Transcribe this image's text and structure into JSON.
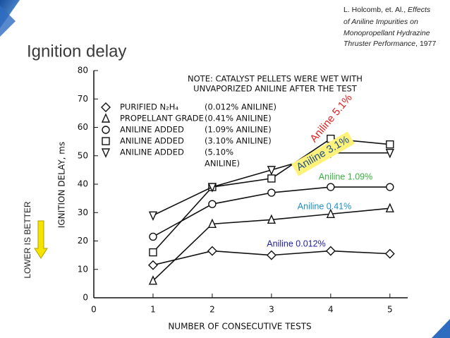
{
  "slide": {
    "title": "Ignition delay",
    "side_label": "LOWER IS BETTER",
    "citation": [
      [
        "L. Holcomb, et. Al., ",
        "Effects"
      ],
      [
        "of Aniline Impurities on"
      ],
      [
        "Monopropellant Hydrazine"
      ],
      [
        "Thruster Performance",
        ", 1977"
      ]
    ]
  },
  "chart_data": {
    "type": "line",
    "note": [
      "NOTE: CATALYST PELLETS WERE WET WITH",
      "UNVAPORIZED ANILINE AFTER THE TEST"
    ],
    "x_label": "NUMBER OF CONSECUTIVE TESTS",
    "y_label": "IGNITION DELAY, ms",
    "x": [
      1,
      2,
      3,
      4,
      5
    ],
    "series": [
      {
        "name": "PURIFIED N₂H₄",
        "note": [
          "(0.012% ANILINE)"
        ],
        "marker": "diamond",
        "color": "#111111",
        "values": [
          11.5,
          16.5,
          15,
          16.5,
          15.5
        ]
      },
      {
        "name": "PROPELLANT GRADE",
        "note": [
          "(0.41% ANILINE)"
        ],
        "marker": "triangle-up",
        "color": "#111111",
        "values": [
          6,
          26,
          27.5,
          29.5,
          31.5
        ]
      },
      {
        "name": "ANILINE ADDED",
        "note": [
          "(1.09% ANILINE)"
        ],
        "marker": "circle",
        "color": "#111111",
        "values": [
          21.5,
          33,
          37,
          39,
          39
        ]
      },
      {
        "name": "ANILINE ADDED",
        "note": [
          "(3.10% ANILINE)"
        ],
        "marker": "square",
        "color": "#111111",
        "values": [
          16,
          39,
          42,
          56,
          54
        ]
      },
      {
        "name": "ANILINE ADDED",
        "note": [
          "(5.10%",
          "ANILINE)"
        ],
        "marker": "triangle-down",
        "color": "#111111",
        "values": [
          29,
          39,
          45,
          51,
          51
        ]
      }
    ],
    "annotations": [
      {
        "text": "Aniline 5.1%",
        "color": "#e02020"
      },
      {
        "text": "Aniline 3.1%",
        "color": "#1f4e8c"
      },
      {
        "text": "Aniline 1.09%",
        "color": "#3cb043"
      },
      {
        "text": "Aniline 0.41%",
        "color": "#1e90c8"
      },
      {
        "text": "Aniline 0.012%",
        "color": "#2020a0"
      }
    ],
    "xlim": [
      0,
      5.3
    ],
    "xticks": [
      0,
      1,
      2,
      3,
      4,
      5
    ],
    "ylim": [
      0,
      80
    ],
    "yticks": [
      0,
      10,
      20,
      30,
      40,
      50,
      60,
      70,
      80
    ]
  }
}
